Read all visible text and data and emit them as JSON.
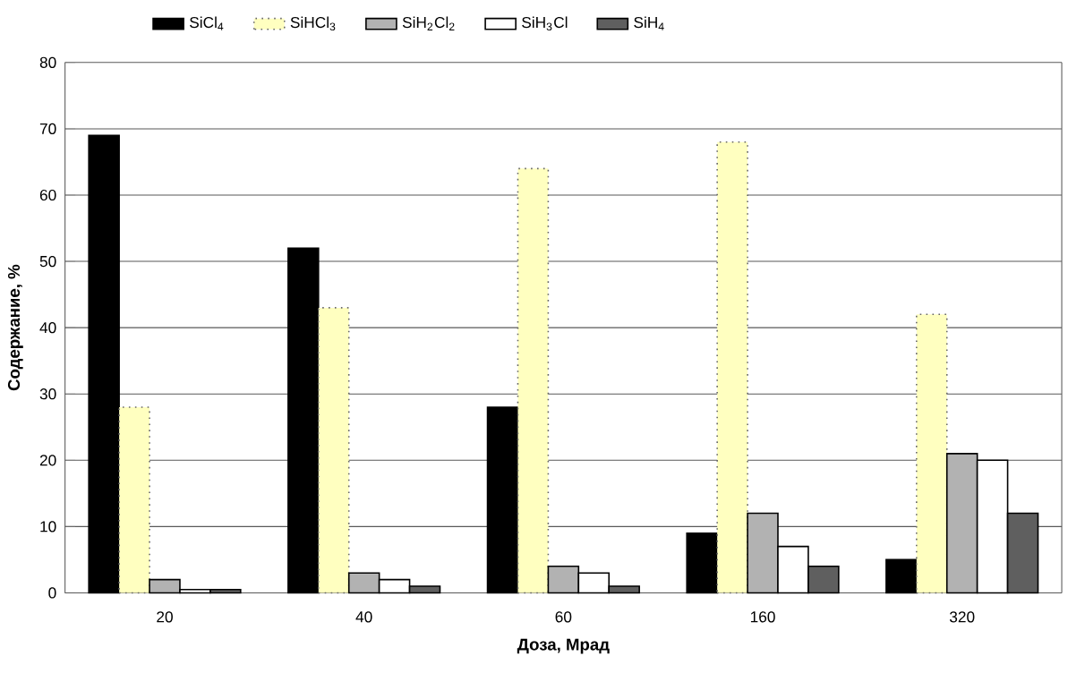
{
  "chart_data": {
    "type": "bar",
    "xlabel": "Доза, Мрад",
    "ylabel": "Содержание, %",
    "categories": [
      "20",
      "40",
      "60",
      "160",
      "320"
    ],
    "series": [
      {
        "name": "SiCl$_{4}$",
        "color": "#000000",
        "values": [
          69,
          52,
          28,
          9,
          5
        ]
      },
      {
        "name": "SiHCl$_{3}$",
        "color": "#ffffc0",
        "line_style": "dotted",
        "values": [
          28,
          43,
          64,
          68,
          42
        ]
      },
      {
        "name": "SiH$_{2}$Cl$_{2}$",
        "color": "#b2b2b2",
        "values": [
          2,
          3,
          4,
          12,
          21
        ]
      },
      {
        "name": "SiH$_{3}$Cl",
        "color": "#ffffff",
        "values": [
          0.5,
          2,
          3,
          7,
          20
        ]
      },
      {
        "name": "SiH$_{4}$",
        "color": "#5f5f5f",
        "values": [
          0.5,
          1,
          1,
          4,
          12
        ]
      }
    ],
    "ylim": [
      0,
      80
    ],
    "yticks": [
      0,
      10,
      20,
      30,
      40,
      50,
      60,
      70,
      80
    ],
    "grid": "y",
    "legend": "top"
  }
}
